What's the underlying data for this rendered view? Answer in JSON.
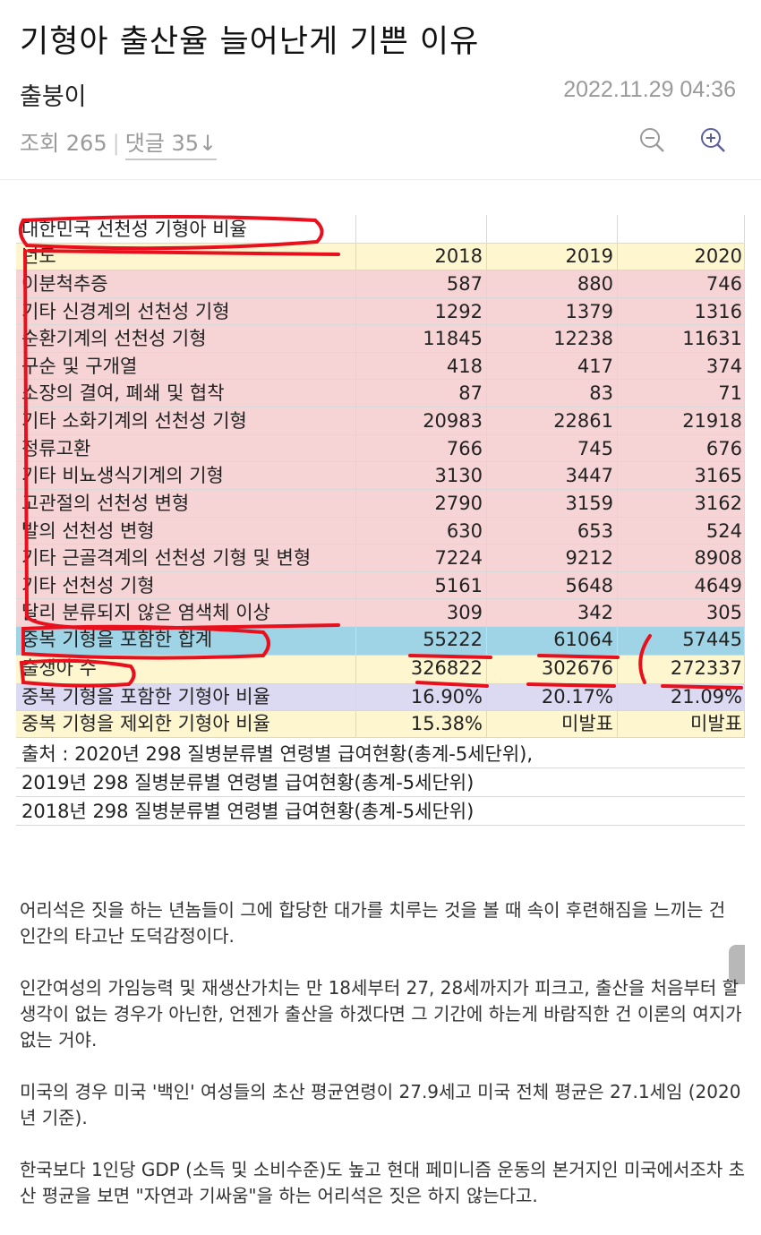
{
  "post": {
    "title": "기형아 출산율 늘어난게 기쁜 이유",
    "author": "출붕이",
    "datetime": "2022.11.29 04:36",
    "views": "조회 265",
    "comments": "댓글 35↓"
  },
  "table": {
    "heading": "대한민국 선천성 기형아 비율",
    "header": [
      "년도",
      "2018",
      "2019",
      "2020"
    ],
    "rows": [
      [
        "이분척추증",
        "587",
        "880",
        "746"
      ],
      [
        "기타 신경계의 선천성 기형",
        "1292",
        "1379",
        "1316"
      ],
      [
        "순환기계의 선천성 기형",
        "11845",
        "12238",
        "11631"
      ],
      [
        "구순 및 구개열",
        "418",
        "417",
        "374"
      ],
      [
        "소장의 결여, 폐쇄 및 협착",
        "87",
        "83",
        "71"
      ],
      [
        "기타 소화기계의 선천성 기형",
        "20983",
        "22861",
        "21918"
      ],
      [
        "정류고환",
        "766",
        "745",
        "676"
      ],
      [
        "기타 비뇨생식기계의 기형",
        "3130",
        "3447",
        "3165"
      ],
      [
        "고관절의 선천성 변형",
        "2790",
        "3159",
        "3162"
      ],
      [
        "발의 선천성 변형",
        "630",
        "653",
        "524"
      ],
      [
        "기타 근골격계의 선천성 기형 및 변형",
        "7224",
        "9212",
        "8908"
      ],
      [
        "기타 선천성 기형",
        "5161",
        "5648",
        "4649"
      ],
      [
        "달리 분류되지 않은 염색체 이상",
        "309",
        "342",
        "305"
      ]
    ],
    "total": [
      "중복 기형을 포함한 합계",
      "55222",
      "61064",
      "57445"
    ],
    "births": [
      "출생아 수",
      "326822",
      "302676",
      "272337"
    ],
    "ratio_incl": [
      "중복 기형을 포함한 기형아 비율",
      "16.90%",
      "20.17%",
      "21.09%"
    ],
    "ratio_excl": [
      "중복 기형을 제외한 기형아 비율",
      "15.38%",
      "미발표",
      "미발표"
    ],
    "sources": [
      "출처 : 2020년 298 질병분류별 연령별 급여현황(총계-5세단위),",
      "2019년 298 질병분류별 연령별 급여현황(총계-5세단위)",
      "2018년 298 질병분류별 연령별 급여현황(총계-5세단위)"
    ]
  },
  "body": [
    "어리석은 짓을 하는 년놈들이 그에 합당한 대가를 치루는 것을 볼 때 속이 후련해짐을 느끼는 건 인간의 타고난 도덕감정이다.",
    "인간여성의 가임능력 및 재생산가치는 만 18세부터 27, 28세까지가 피크고, 출산을 처음부터 할 생각이 없는 경우가 아닌한, 언젠가 출산을 하겠다면 그 기간에 하는게 바람직한 건 이론의 여지가 없는 거야.",
    "미국의 경우 미국 '백인' 여성들의 초산 평균연령이 27.9세고 미국 전체 평균은 27.1세임 (2020년 기준).",
    "한국보다 1인당 GDP (소득 및 소비수준)도 높고 현대 페미니즘 운동의 본거지인 미국에서조차 초산 평균을 보면 \"자연과 기싸움\"을 하는 어리석은 짓은 하지 않는다고."
  ],
  "colors": {
    "pink": "#f6d4d6",
    "yellow": "#fdf6cf",
    "blue": "#9fd4e6",
    "lavender": "#dcd9f2",
    "annotation": "#e8101c"
  }
}
